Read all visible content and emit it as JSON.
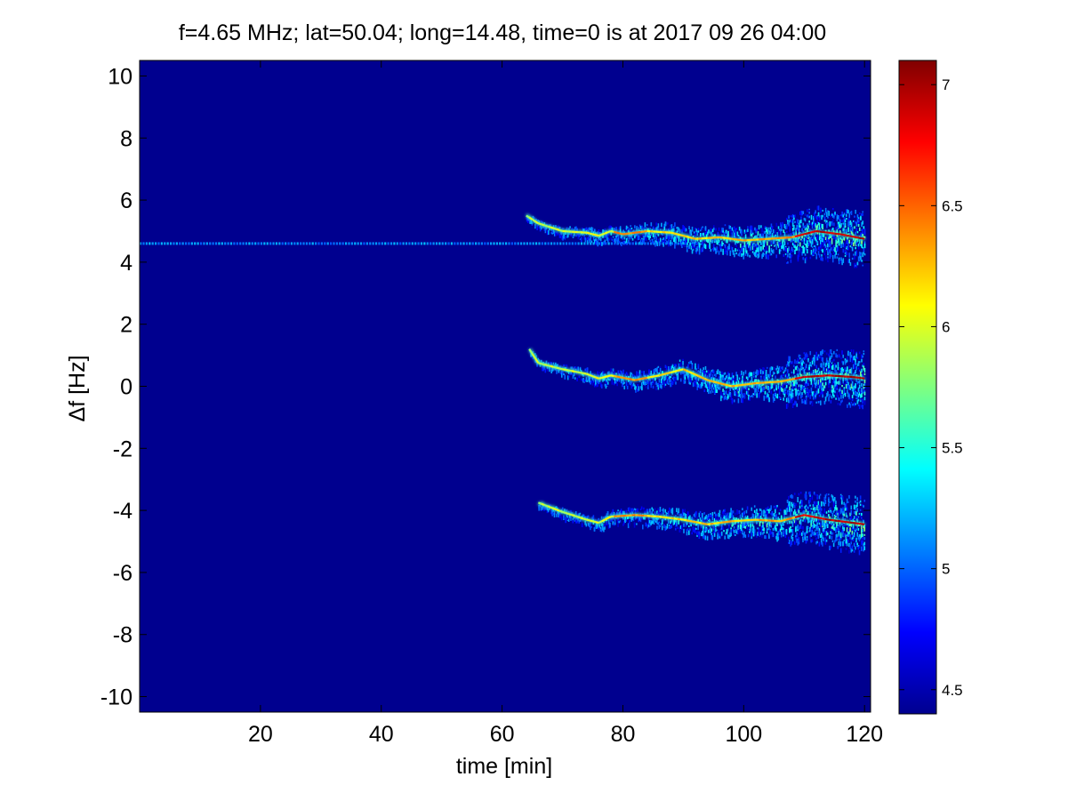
{
  "chart_data": {
    "type": "heatmap",
    "title": "f=4.65 MHz;  lat=50.04; long=14.48, time=0 is at 2017 09 26 04:00",
    "xlabel": "time [min]",
    "ylabel": "Δf [Hz]",
    "xlim": [
      0,
      121
    ],
    "ylim": [
      -10.5,
      10.5
    ],
    "x_ticks": [
      20,
      40,
      60,
      80,
      100,
      120
    ],
    "y_ticks": [
      10,
      8,
      6,
      4,
      2,
      0,
      -2,
      -4,
      -6,
      -8,
      -10
    ],
    "colorbar": {
      "colormap": "jet",
      "clim": [
        4.4,
        7.1
      ],
      "ticks": [
        4.5,
        5,
        5.5,
        6,
        6.5,
        7
      ]
    },
    "background_value": 4.42,
    "grid": false,
    "traces": [
      {
        "name": "upper",
        "points": [
          [
            64,
            5.5
          ],
          [
            66,
            5.25
          ],
          [
            70,
            5.0
          ],
          [
            74,
            4.95
          ],
          [
            76,
            4.85
          ],
          [
            78,
            5.0
          ],
          [
            80,
            4.9
          ],
          [
            84,
            5.0
          ],
          [
            88,
            4.95
          ],
          [
            92,
            4.75
          ],
          [
            96,
            4.8
          ],
          [
            100,
            4.7
          ],
          [
            104,
            4.75
          ],
          [
            108,
            4.8
          ],
          [
            112,
            5.0
          ],
          [
            116,
            4.9
          ],
          [
            120,
            4.75
          ]
        ]
      },
      {
        "name": "middle",
        "points": [
          [
            64.5,
            1.2
          ],
          [
            66,
            0.75
          ],
          [
            70,
            0.55
          ],
          [
            74,
            0.4
          ],
          [
            76,
            0.25
          ],
          [
            78,
            0.35
          ],
          [
            82,
            0.2
          ],
          [
            86,
            0.35
          ],
          [
            90,
            0.55
          ],
          [
            94,
            0.2
          ],
          [
            98,
            0.0
          ],
          [
            102,
            0.1
          ],
          [
            106,
            0.15
          ],
          [
            110,
            0.3
          ],
          [
            114,
            0.35
          ],
          [
            118,
            0.3
          ],
          [
            120,
            0.25
          ]
        ]
      },
      {
        "name": "lower",
        "points": [
          [
            66,
            -3.75
          ],
          [
            70,
            -4.05
          ],
          [
            74,
            -4.3
          ],
          [
            76,
            -4.4
          ],
          [
            78,
            -4.2
          ],
          [
            82,
            -4.15
          ],
          [
            86,
            -4.2
          ],
          [
            90,
            -4.3
          ],
          [
            94,
            -4.45
          ],
          [
            98,
            -4.35
          ],
          [
            102,
            -4.3
          ],
          [
            106,
            -4.35
          ],
          [
            110,
            -4.15
          ],
          [
            114,
            -4.3
          ],
          [
            118,
            -4.4
          ],
          [
            120,
            -4.45
          ]
        ]
      }
    ],
    "carrier_line": {
      "y": 4.6,
      "x_range": [
        0,
        93
      ]
    }
  }
}
